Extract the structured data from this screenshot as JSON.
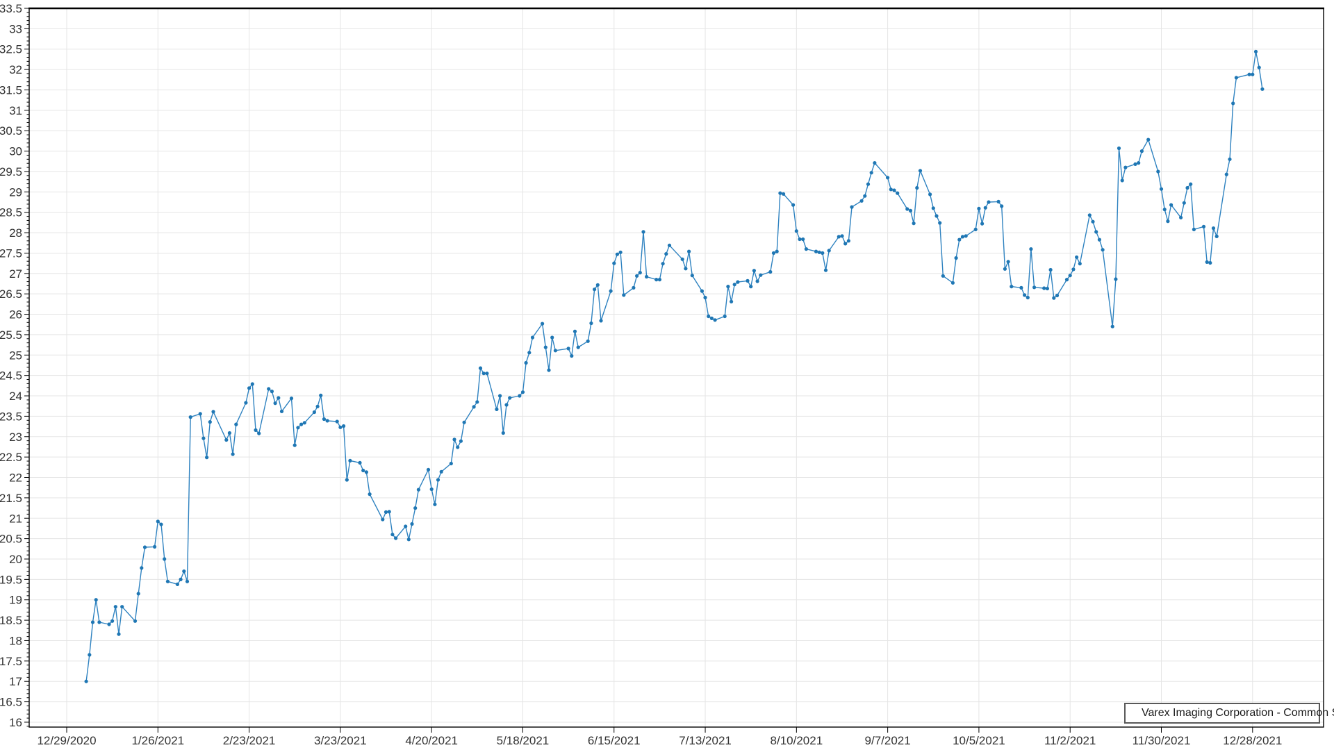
{
  "chart_data": {
    "type": "line",
    "title": "",
    "xlabel": "",
    "ylabel": "",
    "grid": true,
    "legend_position": "bottom-right",
    "series_name": "Varex Imaging Corporation - Common Stock",
    "colors": {
      "line": "#2e82c0",
      "marker": "#1f77b4",
      "grid": "#e5e5e5",
      "axis": "#000000",
      "tick_label": "#333333",
      "legend_border": "#595959",
      "background": "#ffffff"
    },
    "y_axis": {
      "min": 16,
      "max": 33.5,
      "label_step": 0.5,
      "minor_tick_step": 0.1,
      "tick_labels": [
        "33.5",
        "33",
        "32.5",
        "32",
        "31.5",
        "31",
        "30.5",
        "30",
        "29.5",
        "29",
        "28.5",
        "28",
        "27.5",
        "27",
        "26.5",
        "26",
        "25.5",
        "25",
        "24.5",
        "24",
        "23.5",
        "23",
        "22.5",
        "22",
        "21.5",
        "21",
        "20.5",
        "20",
        "19.5",
        "19",
        "18.5",
        "18",
        "17.5",
        "17",
        "16.5",
        "16"
      ]
    },
    "x_axis": {
      "base_date": "12/29/2020",
      "tick_interval_days": 28,
      "tick_labels": [
        "12/29/2020",
        "1/26/2021",
        "2/23/2021",
        "3/23/2021",
        "4/20/2021",
        "5/18/2021",
        "6/15/2021",
        "7/13/2021",
        "8/10/2021",
        "9/7/2021",
        "10/5/2021",
        "11/2/2021",
        "11/30/2021",
        "12/28/2021"
      ]
    },
    "points": [
      [
        "1/4/2021",
        17.0
      ],
      [
        "1/5/2021",
        17.65
      ],
      [
        "1/6/2021",
        18.45
      ],
      [
        "1/7/2021",
        19.0
      ],
      [
        "1/8/2021",
        18.45
      ],
      [
        "1/11/2021",
        18.4
      ],
      [
        "1/12/2021",
        18.48
      ],
      [
        "1/13/2021",
        18.83
      ],
      [
        "1/14/2021",
        18.16
      ],
      [
        "1/15/2021",
        18.83
      ],
      [
        "1/19/2021",
        18.48
      ],
      [
        "1/20/2021",
        19.15
      ],
      [
        "1/21/2021",
        19.78
      ],
      [
        "1/22/2021",
        20.29
      ],
      [
        "1/25/2021",
        20.3
      ],
      [
        "1/26/2021",
        20.92
      ],
      [
        "1/27/2021",
        20.85
      ],
      [
        "1/28/2021",
        20.0
      ],
      [
        "1/29/2021",
        19.45
      ],
      [
        "2/1/2021",
        19.38
      ],
      [
        "2/2/2021",
        19.5
      ],
      [
        "2/3/2021",
        19.7
      ],
      [
        "2/4/2021",
        19.45
      ],
      [
        "2/5/2021",
        23.48
      ],
      [
        "2/8/2021",
        23.56
      ],
      [
        "2/9/2021",
        22.96
      ],
      [
        "2/10/2021",
        22.49
      ],
      [
        "2/11/2021",
        23.36
      ],
      [
        "2/12/2021",
        23.61
      ],
      [
        "2/16/2021",
        22.92
      ],
      [
        "2/17/2021",
        23.09
      ],
      [
        "2/18/2021",
        22.57
      ],
      [
        "2/19/2021",
        23.3
      ],
      [
        "2/22/2021",
        23.83
      ],
      [
        "2/23/2021",
        24.19
      ],
      [
        "2/24/2021",
        24.29
      ],
      [
        "2/25/2021",
        23.16
      ],
      [
        "2/26/2021",
        23.08
      ],
      [
        "3/1/2021",
        24.17
      ],
      [
        "3/2/2021",
        24.11
      ],
      [
        "3/3/2021",
        23.82
      ],
      [
        "3/4/2021",
        23.95
      ],
      [
        "3/5/2021",
        23.62
      ],
      [
        "3/8/2021",
        23.94
      ],
      [
        "3/9/2021",
        22.79
      ],
      [
        "3/10/2021",
        23.22
      ],
      [
        "3/11/2021",
        23.3
      ],
      [
        "3/12/2021",
        23.34
      ],
      [
        "3/15/2021",
        23.6
      ],
      [
        "3/16/2021",
        23.74
      ],
      [
        "3/17/2021",
        24.01
      ],
      [
        "3/18/2021",
        23.43
      ],
      [
        "3/19/2021",
        23.39
      ],
      [
        "3/22/2021",
        23.37
      ],
      [
        "3/23/2021",
        23.23
      ],
      [
        "3/24/2021",
        23.26
      ],
      [
        "3/25/2021",
        21.94
      ],
      [
        "3/26/2021",
        22.41
      ],
      [
        "3/29/2021",
        22.36
      ],
      [
        "3/30/2021",
        22.17
      ],
      [
        "3/31/2021",
        22.13
      ],
      [
        "4/1/2021",
        21.59
      ],
      [
        "4/5/2021",
        20.97
      ],
      [
        "4/6/2021",
        21.15
      ],
      [
        "4/7/2021",
        21.16
      ],
      [
        "4/8/2021",
        20.6
      ],
      [
        "4/9/2021",
        20.51
      ],
      [
        "4/12/2021",
        20.8
      ],
      [
        "4/13/2021",
        20.48
      ],
      [
        "4/14/2021",
        20.86
      ],
      [
        "4/15/2021",
        21.25
      ],
      [
        "4/16/2021",
        21.7
      ],
      [
        "4/19/2021",
        22.19
      ],
      [
        "4/20/2021",
        21.71
      ],
      [
        "4/21/2021",
        21.34
      ],
      [
        "4/22/2021",
        21.94
      ],
      [
        "4/23/2021",
        22.14
      ],
      [
        "4/26/2021",
        22.34
      ],
      [
        "4/27/2021",
        22.93
      ],
      [
        "4/28/2021",
        22.74
      ],
      [
        "4/29/2021",
        22.89
      ],
      [
        "4/30/2021",
        23.35
      ],
      [
        "5/3/2021",
        23.73
      ],
      [
        "5/4/2021",
        23.85
      ],
      [
        "5/5/2021",
        24.68
      ],
      [
        "5/6/2021",
        24.55
      ],
      [
        "5/7/2021",
        24.55
      ],
      [
        "5/10/2021",
        23.67
      ],
      [
        "5/11/2021",
        24.0
      ],
      [
        "5/12/2021",
        23.09
      ],
      [
        "5/13/2021",
        23.78
      ],
      [
        "5/14/2021",
        23.95
      ],
      [
        "5/17/2021",
        24.0
      ],
      [
        "5/18/2021",
        24.09
      ],
      [
        "5/19/2021",
        24.81
      ],
      [
        "5/20/2021",
        25.06
      ],
      [
        "5/21/2021",
        25.43
      ],
      [
        "5/24/2021",
        25.77
      ],
      [
        "5/25/2021",
        25.19
      ],
      [
        "5/26/2021",
        24.63
      ],
      [
        "5/27/2021",
        25.43
      ],
      [
        "5/28/2021",
        25.11
      ],
      [
        "6/1/2021",
        25.16
      ],
      [
        "6/2/2021",
        24.98
      ],
      [
        "6/3/2021",
        25.58
      ],
      [
        "6/4/2021",
        25.19
      ],
      [
        "6/7/2021",
        25.34
      ],
      [
        "6/8/2021",
        25.78
      ],
      [
        "6/9/2021",
        26.61
      ],
      [
        "6/10/2021",
        26.72
      ],
      [
        "6/11/2021",
        25.84
      ],
      [
        "6/14/2021",
        26.57
      ],
      [
        "6/15/2021",
        27.25
      ],
      [
        "6/16/2021",
        27.47
      ],
      [
        "6/17/2021",
        27.52
      ],
      [
        "6/18/2021",
        26.47
      ],
      [
        "6/21/2021",
        26.65
      ],
      [
        "6/22/2021",
        26.94
      ],
      [
        "6/23/2021",
        27.02
      ],
      [
        "6/24/2021",
        28.02
      ],
      [
        "6/25/2021",
        26.92
      ],
      [
        "6/28/2021",
        26.85
      ],
      [
        "6/29/2021",
        26.85
      ],
      [
        "6/30/2021",
        27.24
      ],
      [
        "7/1/2021",
        27.48
      ],
      [
        "7/2/2021",
        27.69
      ],
      [
        "7/6/2021",
        27.35
      ],
      [
        "7/7/2021",
        27.12
      ],
      [
        "7/8/2021",
        27.54
      ],
      [
        "7/9/2021",
        26.95
      ],
      [
        "7/12/2021",
        26.57
      ],
      [
        "7/13/2021",
        26.41
      ],
      [
        "7/14/2021",
        25.95
      ],
      [
        "7/15/2021",
        25.9
      ],
      [
        "7/16/2021",
        25.86
      ],
      [
        "7/19/2021",
        25.95
      ],
      [
        "7/20/2021",
        26.68
      ],
      [
        "7/21/2021",
        26.31
      ],
      [
        "7/22/2021",
        26.73
      ],
      [
        "7/23/2021",
        26.79
      ],
      [
        "7/26/2021",
        26.82
      ],
      [
        "7/27/2021",
        26.68
      ],
      [
        "7/28/2021",
        27.07
      ],
      [
        "7/29/2021",
        26.81
      ],
      [
        "7/30/2021",
        26.96
      ],
      [
        "8/2/2021",
        27.04
      ],
      [
        "8/3/2021",
        27.5
      ],
      [
        "8/4/2021",
        27.54
      ],
      [
        "8/5/2021",
        28.97
      ],
      [
        "8/6/2021",
        28.95
      ],
      [
        "8/9/2021",
        28.68
      ],
      [
        "8/10/2021",
        28.04
      ],
      [
        "8/11/2021",
        27.84
      ],
      [
        "8/12/2021",
        27.84
      ],
      [
        "8/13/2021",
        27.6
      ],
      [
        "8/16/2021",
        27.54
      ],
      [
        "8/17/2021",
        27.52
      ],
      [
        "8/18/2021",
        27.5
      ],
      [
        "8/19/2021",
        27.08
      ],
      [
        "8/20/2021",
        27.56
      ],
      [
        "8/23/2021",
        27.9
      ],
      [
        "8/24/2021",
        27.92
      ],
      [
        "8/25/2021",
        27.73
      ],
      [
        "8/26/2021",
        27.8
      ],
      [
        "8/27/2021",
        28.63
      ],
      [
        "8/30/2021",
        28.78
      ],
      [
        "8/31/2021",
        28.9
      ],
      [
        "9/1/2021",
        29.19
      ],
      [
        "9/2/2021",
        29.47
      ],
      [
        "9/3/2021",
        29.71
      ],
      [
        "9/7/2021",
        29.35
      ],
      [
        "9/8/2021",
        29.06
      ],
      [
        "9/9/2021",
        29.04
      ],
      [
        "9/10/2021",
        28.97
      ],
      [
        "9/13/2021",
        28.58
      ],
      [
        "9/14/2021",
        28.54
      ],
      [
        "9/15/2021",
        28.23
      ],
      [
        "9/16/2021",
        29.1
      ],
      [
        "9/17/2021",
        29.52
      ],
      [
        "9/20/2021",
        28.94
      ],
      [
        "9/21/2021",
        28.6
      ],
      [
        "9/22/2021",
        28.41
      ],
      [
        "9/23/2021",
        28.24
      ],
      [
        "9/24/2021",
        26.94
      ],
      [
        "9/27/2021",
        26.77
      ],
      [
        "9/28/2021",
        27.38
      ],
      [
        "9/29/2021",
        27.83
      ],
      [
        "9/30/2021",
        27.9
      ],
      [
        "10/1/2021",
        27.92
      ],
      [
        "10/4/2021",
        28.08
      ],
      [
        "10/5/2021",
        28.59
      ],
      [
        "10/6/2021",
        28.22
      ],
      [
        "10/7/2021",
        28.61
      ],
      [
        "10/8/2021",
        28.75
      ],
      [
        "10/11/2021",
        28.76
      ],
      [
        "10/12/2021",
        28.65
      ],
      [
        "10/13/2021",
        27.11
      ],
      [
        "10/14/2021",
        27.29
      ],
      [
        "10/15/2021",
        26.68
      ],
      [
        "10/18/2021",
        26.65
      ],
      [
        "10/19/2021",
        26.47
      ],
      [
        "10/20/2021",
        26.41
      ],
      [
        "10/21/2021",
        27.6
      ],
      [
        "10/22/2021",
        26.66
      ],
      [
        "10/25/2021",
        26.64
      ],
      [
        "10/26/2021",
        26.63
      ],
      [
        "10/27/2021",
        27.09
      ],
      [
        "10/28/2021",
        26.4
      ],
      [
        "10/29/2021",
        26.46
      ],
      [
        "11/1/2021",
        26.85
      ],
      [
        "11/2/2021",
        26.95
      ],
      [
        "11/3/2021",
        27.1
      ],
      [
        "11/4/2021",
        27.4
      ],
      [
        "11/5/2021",
        27.24
      ],
      [
        "11/8/2021",
        28.43
      ],
      [
        "11/9/2021",
        28.27
      ],
      [
        "11/10/2021",
        28.02
      ],
      [
        "11/11/2021",
        27.83
      ],
      [
        "11/12/2021",
        27.58
      ],
      [
        "11/15/2021",
        25.7
      ],
      [
        "11/16/2021",
        26.86
      ],
      [
        "11/17/2021",
        30.07
      ],
      [
        "11/18/2021",
        29.28
      ],
      [
        "11/19/2021",
        29.6
      ],
      [
        "11/22/2021",
        29.68
      ],
      [
        "11/23/2021",
        29.71
      ],
      [
        "11/24/2021",
        30.0
      ],
      [
        "11/26/2021",
        30.28
      ],
      [
        "11/29/2021",
        29.5
      ],
      [
        "11/30/2021",
        29.07
      ],
      [
        "12/1/2021",
        28.57
      ],
      [
        "12/2/2021",
        28.28
      ],
      [
        "12/3/2021",
        28.68
      ],
      [
        "12/6/2021",
        28.37
      ],
      [
        "12/7/2021",
        28.73
      ],
      [
        "12/8/2021",
        29.1
      ],
      [
        "12/9/2021",
        29.19
      ],
      [
        "12/10/2021",
        28.08
      ],
      [
        "12/13/2021",
        28.15
      ],
      [
        "12/14/2021",
        27.28
      ],
      [
        "12/15/2021",
        27.26
      ],
      [
        "12/16/2021",
        28.11
      ],
      [
        "12/17/2021",
        27.91
      ],
      [
        "12/20/2021",
        29.43
      ],
      [
        "12/21/2021",
        29.8
      ],
      [
        "12/22/2021",
        31.17
      ],
      [
        "12/23/2021",
        31.8
      ],
      [
        "12/27/2021",
        31.88
      ],
      [
        "12/28/2021",
        31.88
      ],
      [
        "12/29/2021",
        32.44
      ],
      [
        "12/30/2021",
        32.05
      ],
      [
        "12/31/2021",
        31.52
      ]
    ]
  }
}
